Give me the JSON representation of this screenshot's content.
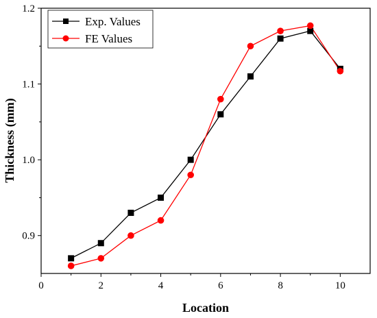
{
  "chart_data": {
    "type": "line",
    "xlabel": "Location",
    "ylabel": "Thickness (mm)",
    "xlim": [
      0,
      11
    ],
    "ylim": [
      0.85,
      1.2
    ],
    "x_ticks": [
      0,
      2,
      4,
      6,
      8,
      10
    ],
    "y_ticks": [
      0.9,
      1.0,
      1.1,
      1.2
    ],
    "x_tick_labels": [
      "0",
      "2",
      "4",
      "6",
      "8",
      "10"
    ],
    "y_tick_labels": [
      "0.9",
      "1.0",
      "1.1",
      "1.2"
    ],
    "grid": false,
    "legend_position": "top-left",
    "series": [
      {
        "name": "Exp. Values",
        "color": "#000000",
        "marker": "square",
        "x": [
          1,
          2,
          3,
          4,
          5,
          6,
          7,
          8,
          9,
          10
        ],
        "y": [
          0.87,
          0.89,
          0.93,
          0.95,
          1.0,
          1.06,
          1.11,
          1.16,
          1.17,
          1.12
        ]
      },
      {
        "name": "FE Values",
        "color": "#ff0000",
        "marker": "circle",
        "x": [
          1,
          2,
          3,
          4,
          5,
          6,
          7,
          8,
          9,
          10
        ],
        "y": [
          0.86,
          0.87,
          0.9,
          0.92,
          0.98,
          1.08,
          1.15,
          1.17,
          1.177,
          1.117
        ]
      }
    ]
  }
}
